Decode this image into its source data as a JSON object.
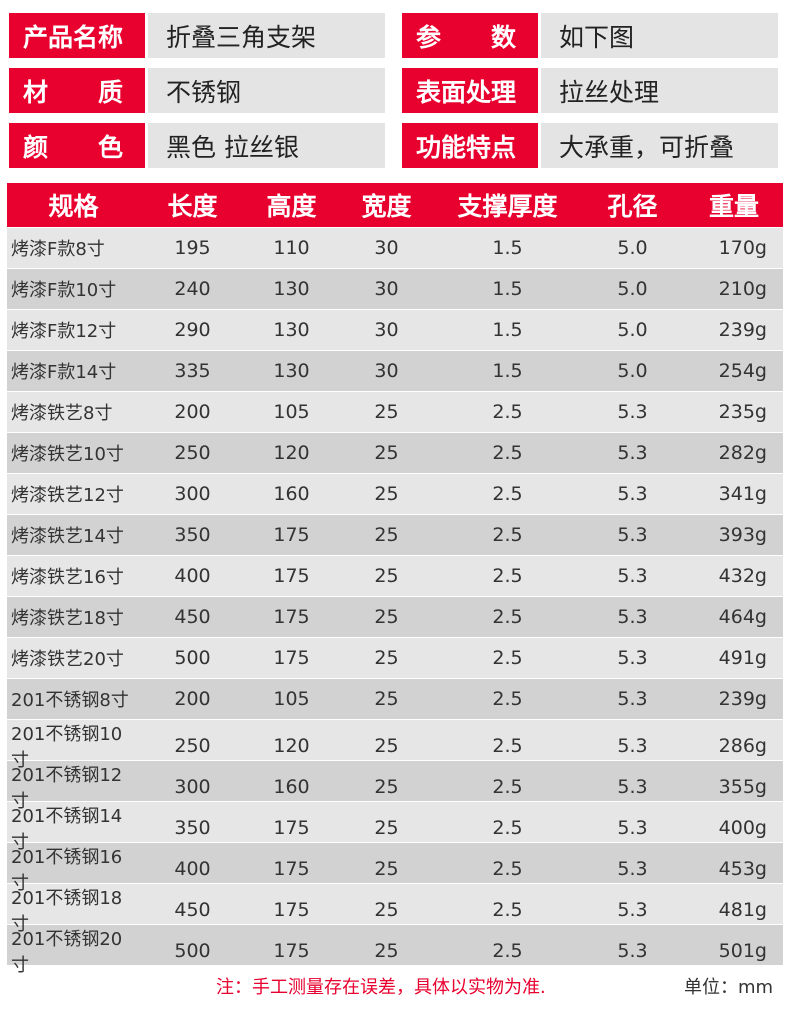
{
  "info": [
    {
      "label": "产品名称",
      "value": "折叠三角支架"
    },
    {
      "label": "材　　质",
      "value": "不锈钢"
    },
    {
      "label": "颜　　色",
      "value": "黑色 拉丝银"
    },
    {
      "label": "参　　数",
      "value": "如下图"
    },
    {
      "label": "表面处理",
      "value": "拉丝处理"
    },
    {
      "label": "功能特点",
      "value": "大承重，可折叠"
    }
  ],
  "table": {
    "headers": [
      "规格",
      "长度",
      "高度",
      "宽度",
      "支撑厚度",
      "孔径",
      "重量"
    ],
    "rows": [
      [
        "烤漆F款8寸",
        "195",
        "110",
        "30",
        "1.5",
        "5.0",
        "170g"
      ],
      [
        "烤漆F款10寸",
        "240",
        "130",
        "30",
        "1.5",
        "5.0",
        "210g"
      ],
      [
        "烤漆F款12寸",
        "290",
        "130",
        "30",
        "1.5",
        "5.0",
        "239g"
      ],
      [
        "烤漆F款14寸",
        "335",
        "130",
        "30",
        "1.5",
        "5.0",
        "254g"
      ],
      [
        "烤漆铁艺8寸",
        "200",
        "105",
        "25",
        "2.5",
        "5.3",
        "235g"
      ],
      [
        "烤漆铁艺10寸",
        "250",
        "120",
        "25",
        "2.5",
        "5.3",
        "282g"
      ],
      [
        "烤漆铁艺12寸",
        "300",
        "160",
        "25",
        "2.5",
        "5.3",
        "341g"
      ],
      [
        "烤漆铁艺14寸",
        "350",
        "175",
        "25",
        "2.5",
        "5.3",
        "393g"
      ],
      [
        "烤漆铁艺16寸",
        "400",
        "175",
        "25",
        "2.5",
        "5.3",
        "432g"
      ],
      [
        "烤漆铁艺18寸",
        "450",
        "175",
        "25",
        "2.5",
        "5.3",
        "464g"
      ],
      [
        "烤漆铁艺20寸",
        "500",
        "175",
        "25",
        "2.5",
        "5.3",
        "491g"
      ],
      [
        "201不锈钢8寸",
        "200",
        "105",
        "25",
        "2.5",
        "5.3",
        "239g"
      ],
      [
        "201不锈钢10寸",
        "250",
        "120",
        "25",
        "2.5",
        "5.3",
        "286g"
      ],
      [
        "201不锈钢12寸",
        "300",
        "160",
        "25",
        "2.5",
        "5.3",
        "355g"
      ],
      [
        "201不锈钢14寸",
        "350",
        "175",
        "25",
        "2.5",
        "5.3",
        "400g"
      ],
      [
        "201不锈钢16寸",
        "400",
        "175",
        "25",
        "2.5",
        "5.3",
        "453g"
      ],
      [
        "201不锈钢18寸",
        "450",
        "175",
        "25",
        "2.5",
        "5.3",
        "481g"
      ],
      [
        "201不锈钢20寸",
        "500",
        "175",
        "25",
        "2.5",
        "5.3",
        "501g"
      ]
    ]
  },
  "footer": {
    "note": "注：手工测量存在误差，具体以实物为准.",
    "unit": "单位：mm"
  },
  "colors": {
    "accent": "#e8002e",
    "row_light": "#e6e6e6",
    "row_dark": "#d2d2d2"
  }
}
